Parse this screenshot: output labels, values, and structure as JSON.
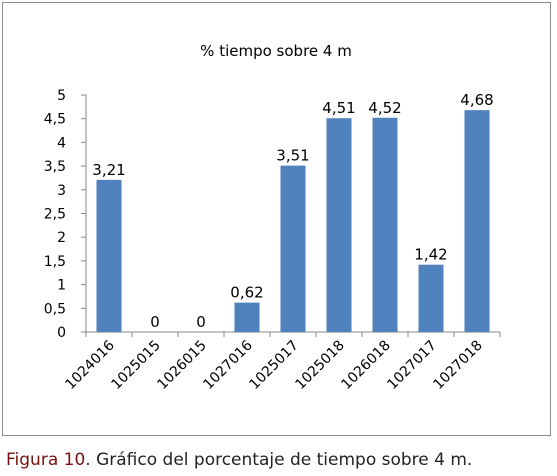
{
  "chart_data": {
    "type": "bar",
    "title": "% tiempo sobre 4 m",
    "categories": [
      "1024016",
      "1025015",
      "1026015",
      "1027016",
      "1025017",
      "1025018",
      "1026018",
      "1027017",
      "1027018"
    ],
    "values": [
      3.21,
      0,
      0,
      0.62,
      3.51,
      4.51,
      4.52,
      1.42,
      4.68
    ],
    "data_labels": [
      "3,21",
      "0",
      "0",
      "0,62",
      "3,51",
      "4,51",
      "4,52",
      "1,42",
      "4,68"
    ],
    "y_ticks": [
      0,
      0.5,
      1,
      1.5,
      2,
      2.5,
      3,
      3.5,
      4,
      4.5,
      5
    ],
    "y_tick_labels": [
      "0",
      "0,5",
      "1",
      "1,5",
      "2",
      "2,5",
      "3",
      "3,5",
      "4",
      "4,5",
      "5"
    ],
    "ylim": [
      0,
      5
    ],
    "xlabel": "",
    "ylabel": "",
    "grid": false,
    "bar_color": "#4f81bd"
  },
  "caption": {
    "label": "Figura 10.",
    "text": " Gráfico del porcentaje de tiempo sobre 4 m."
  }
}
